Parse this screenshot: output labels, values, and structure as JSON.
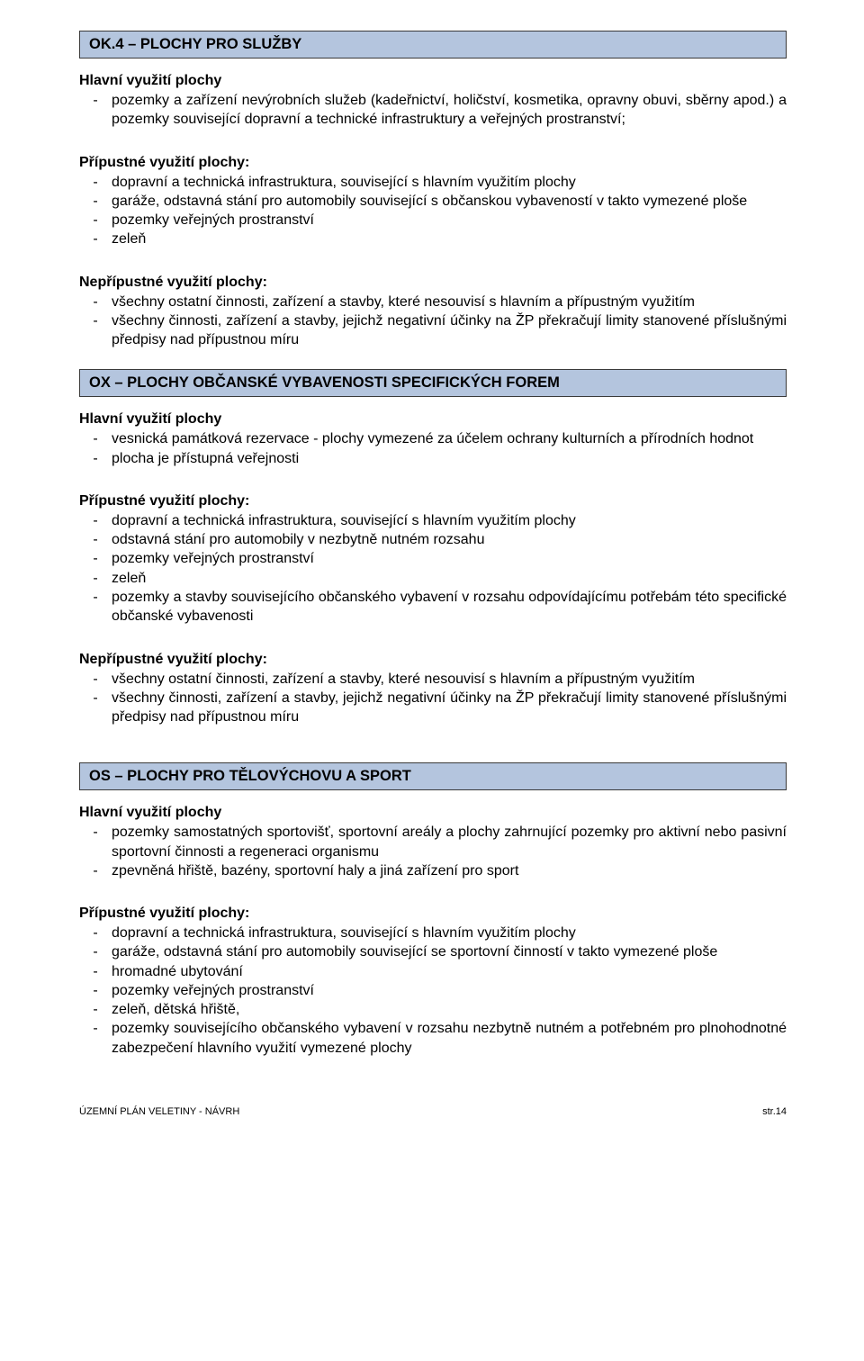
{
  "colors": {
    "bar_bg": "#b4c5de",
    "bar_border": "#3a3a3a",
    "text": "#000000",
    "page_bg": "#ffffff"
  },
  "sections": {
    "ok4": {
      "bar": "OK.4 – PLOCHY PRO SLUŽBY",
      "hlavni_title": "Hlavní využití plochy",
      "hlavni": [
        "pozemky a zařízení nevýrobních služeb (kadeřnictví, holičství, kosmetika, opravny obuvi, sběrny apod.) a pozemky související dopravní a technické infrastruktury a veřejných prostranství;"
      ],
      "pripustne_title": "Přípustné využití plochy:",
      "pripustne": [
        "dopravní a technická infrastruktura, související s hlavním využitím plochy",
        "garáže, odstavná stání pro automobily související s občanskou vybaveností v takto vymezené ploše",
        "pozemky veřejných prostranství",
        "zeleň"
      ],
      "nepripustne_title": "Nepřípustné využití plochy:",
      "nepripustne": [
        "všechny ostatní činnosti, zařízení a stavby, které nesouvisí s hlavním a přípustným využitím",
        "všechny činnosti, zařízení a stavby, jejichž negativní účinky na ŽP překračují limity stanovené příslušnými předpisy nad přípustnou míru"
      ]
    },
    "ox": {
      "bar": "OX – PLOCHY OBČANSKÉ VYBAVENOSTI SPECIFICKÝCH FOREM",
      "hlavni_title": "Hlavní využití plochy",
      "hlavni": [
        "vesnická památková rezervace - plochy vymezené za účelem ochrany kulturních a přírodních hodnot",
        "plocha je přístupná veřejnosti"
      ],
      "pripustne_title": "Přípustné využití plochy:",
      "pripustne": [
        "dopravní a technická infrastruktura, související s hlavním využitím plochy",
        "odstavná stání pro automobily v nezbytně nutném rozsahu",
        "pozemky veřejných prostranství",
        "zeleň",
        "pozemky a stavby souvisejícího občanského vybavení v rozsahu odpovídajícímu potřebám této specifické občanské vybavenosti"
      ],
      "nepripustne_title": "Nepřípustné využití plochy:",
      "nepripustne": [
        "všechny ostatní činnosti, zařízení a stavby, které nesouvisí s hlavním a přípustným využitím",
        "všechny činnosti, zařízení a stavby, jejichž negativní účinky na ŽP překračují limity stanovené příslušnými předpisy nad přípustnou míru"
      ]
    },
    "os": {
      "bar": "OS – PLOCHY PRO TĚLOVÝCHOVU A SPORT",
      "hlavni_title": "Hlavní využití plochy",
      "hlavni": [
        "pozemky samostatných sportovišť, sportovní areály a plochy zahrnující pozemky pro aktivní nebo pasivní sportovní činnosti a regeneraci organismu",
        "zpevněná hřiště, bazény, sportovní haly a jiná zařízení pro sport"
      ],
      "pripustne_title": "Přípustné využití plochy:",
      "pripustne": [
        "dopravní a technická infrastruktura, související s hlavním využitím plochy",
        "garáže, odstavná stání pro automobily související se sportovní činností v takto vymezené ploše",
        "hromadné ubytování",
        "pozemky veřejných prostranství",
        "zeleň, dětská hřiště,",
        "pozemky souvisejícího občanského vybavení v rozsahu nezbytně nutném a potřebném pro plnohodnotné zabezpečení hlavního využití vymezené plochy"
      ]
    }
  },
  "footer": {
    "left": "ÚZEMNÍ PLÁN VELETINY  - NÁVRH",
    "right": "str.14"
  }
}
